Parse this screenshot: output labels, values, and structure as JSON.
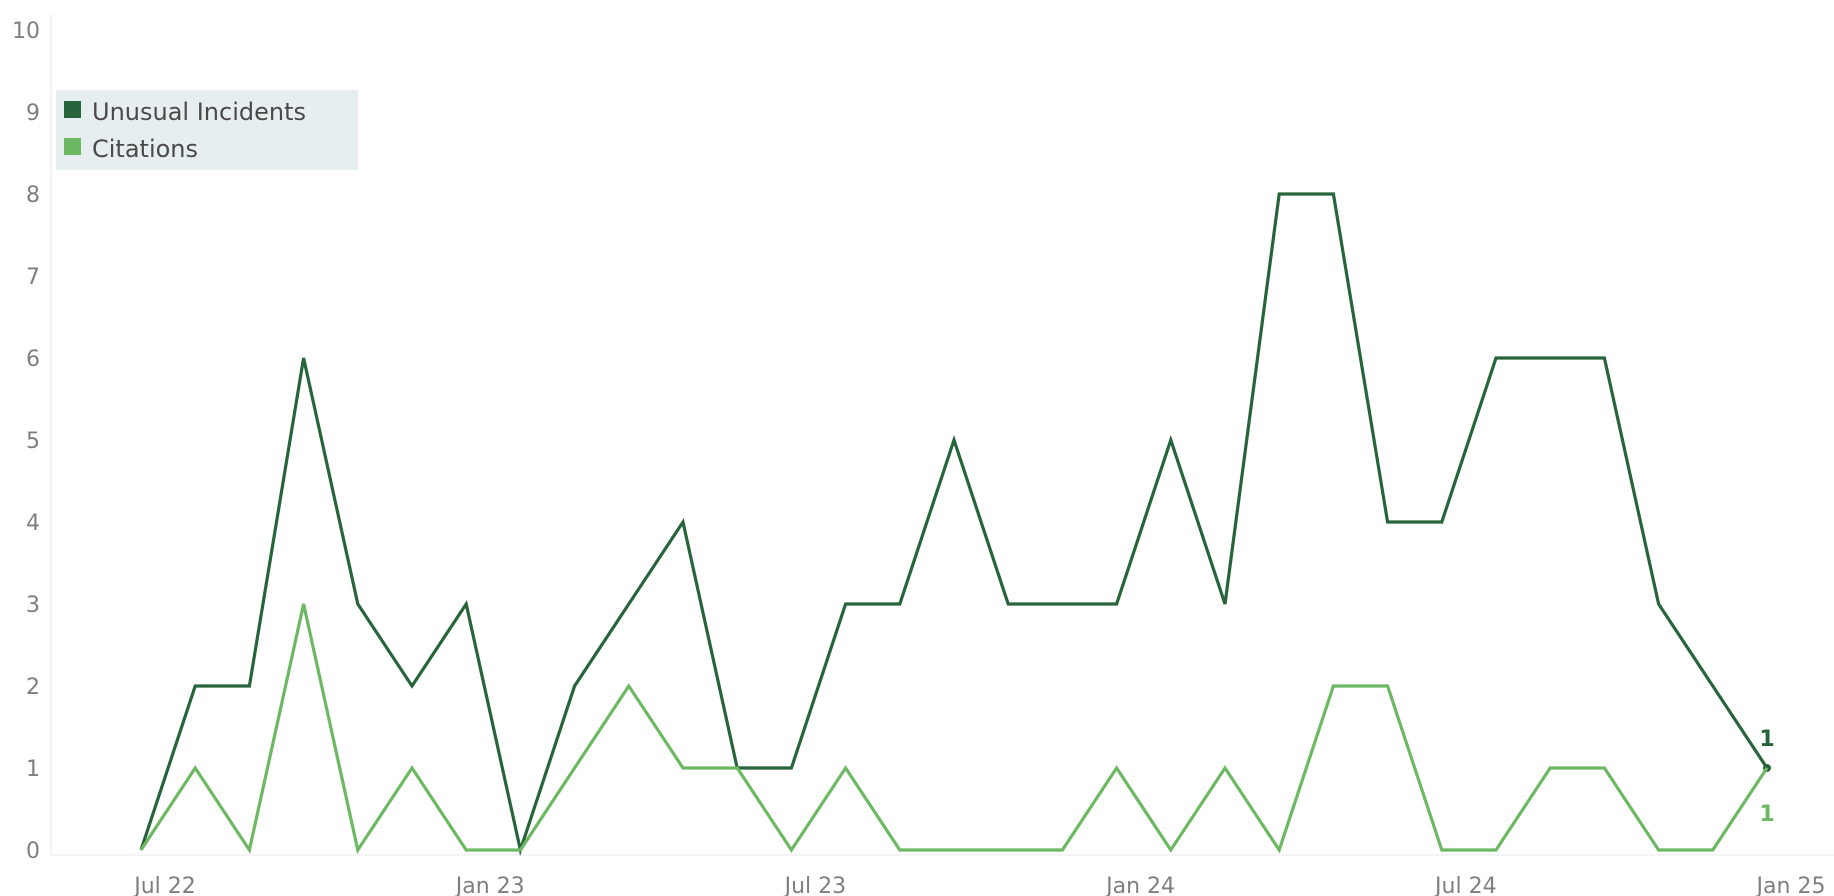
{
  "chart_data": {
    "type": "line",
    "title": "",
    "xlabel": "",
    "ylabel": "",
    "x": [
      "2022-07",
      "2022-08",
      "2022-09",
      "2022-10",
      "2022-11",
      "2022-12",
      "2023-01",
      "2023-02",
      "2023-03",
      "2023-04",
      "2023-05",
      "2023-06",
      "2023-07",
      "2023-08",
      "2023-09",
      "2023-10",
      "2023-11",
      "2023-12",
      "2024-01",
      "2024-02",
      "2024-03",
      "2024-04",
      "2024-05",
      "2024-06",
      "2024-07",
      "2024-08",
      "2024-09",
      "2024-10",
      "2024-11",
      "2024-12",
      "2025-01"
    ],
    "x_ticks": [
      "Jul 22",
      "Jan 23",
      "Jul 23",
      "Jan 24",
      "Jul 24",
      "Jan 25"
    ],
    "y_ticks": [
      "0",
      "1",
      "2",
      "3",
      "4",
      "5",
      "6",
      "7",
      "8",
      "9",
      "10"
    ],
    "ylim": [
      0,
      10
    ],
    "grid": false,
    "legend_position": "top-left",
    "series": [
      {
        "name": "Unusual Incidents",
        "color": "#27643c",
        "values": [
          0,
          2,
          2,
          6,
          3,
          2,
          3,
          0,
          2,
          3,
          4,
          1,
          1,
          3,
          3,
          5,
          3,
          3,
          3,
          5,
          3,
          8,
          8,
          4,
          4,
          6,
          6,
          6,
          3,
          2,
          1
        ],
        "end_label": "1"
      },
      {
        "name": "Citations",
        "color": "#6db863",
        "values": [
          0,
          1,
          0,
          3,
          0,
          1,
          0,
          0,
          1,
          2,
          1,
          1,
          0,
          1,
          0,
          0,
          0,
          0,
          1,
          0,
          1,
          0,
          2,
          2,
          0,
          0,
          1,
          1,
          0,
          0,
          1
        ],
        "end_label": "1"
      }
    ]
  }
}
